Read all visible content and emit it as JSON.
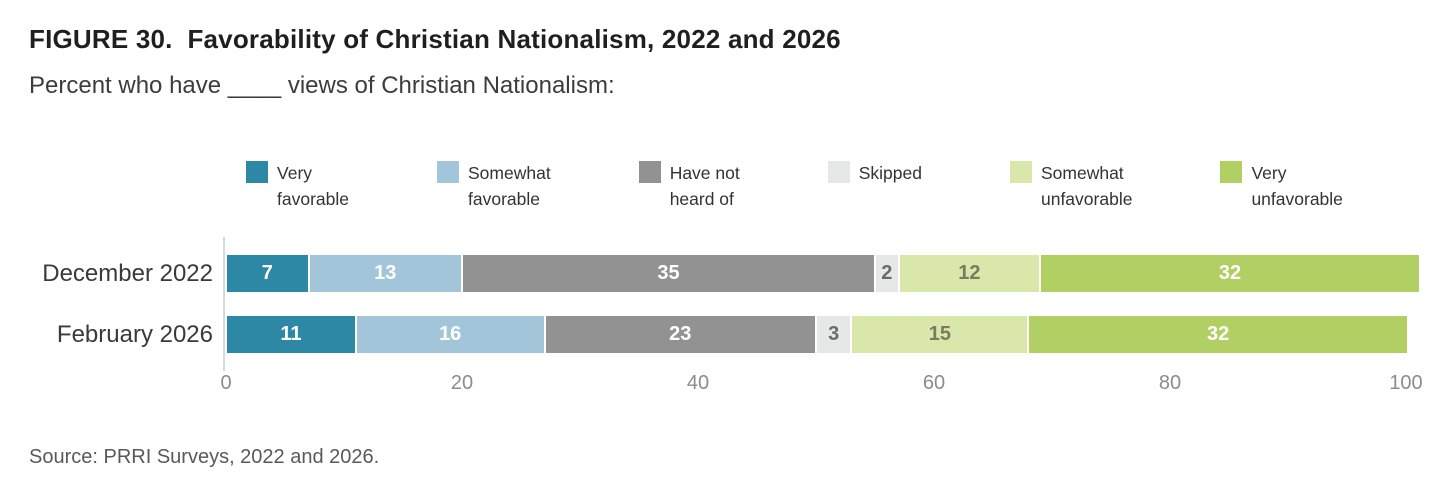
{
  "chart_data": {
    "type": "bar",
    "stacked": true,
    "orientation": "horizontal",
    "title": "FIGURE 30.  Favorability of Christian Nationalism, 2022 and 2026",
    "subtitle": "Percent who have ____ views of Christian Nationalism:",
    "categories": [
      "December 2022",
      "February 2026"
    ],
    "series": [
      {
        "name": "Very favorable",
        "legend_label": "Very\nfavorable",
        "color": "#2c88a4",
        "label_color": "#ffffff",
        "values": [
          7,
          11
        ]
      },
      {
        "name": "Somewhat favorable",
        "legend_label": "Somewhat\nfavorable",
        "color": "#a2c5da",
        "label_color": "#ffffff",
        "values": [
          13,
          16
        ]
      },
      {
        "name": "Have not heard of",
        "legend_label": "Have not\nheard of",
        "color": "#929292",
        "label_color": "#ffffff",
        "values": [
          35,
          23
        ]
      },
      {
        "name": "Skipped",
        "legend_label": "Skipped",
        "color": "#e5e8e7",
        "label_color": "#6b6b6b",
        "values": [
          2,
          3
        ]
      },
      {
        "name": "Somewhat unfavorable",
        "legend_label": "Somewhat\nunfavorable",
        "color": "#d9e7ab",
        "label_color": "#797c5e",
        "values": [
          12,
          15
        ]
      },
      {
        "name": "Very unfavorable",
        "legend_label": "Very\nunfavorable",
        "color": "#b2cf63",
        "label_color": "#ffffff",
        "values": [
          32,
          32
        ]
      }
    ],
    "x_ticks": [
      "0",
      "20",
      "40",
      "60",
      "80",
      "100"
    ],
    "xlim": [
      0,
      100
    ],
    "xlabel": "",
    "ylabel": "",
    "grid": false,
    "legend_position": "top"
  },
  "source": "Source: PRRI Surveys, 2022 and 2026."
}
